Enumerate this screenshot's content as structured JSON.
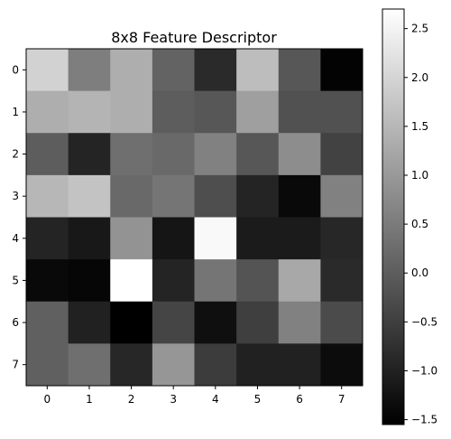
{
  "chart_data": {
    "type": "heatmap",
    "title": "8x8 Feature Descriptor",
    "xlabel": "",
    "ylabel": "",
    "x_ticks": [
      "0",
      "1",
      "2",
      "3",
      "4",
      "5",
      "6",
      "7"
    ],
    "y_ticks": [
      "0",
      "1",
      "2",
      "3",
      "4",
      "5",
      "6",
      "7"
    ],
    "colormap": "gray",
    "vmin": -1.55,
    "vmax": 2.7,
    "colorbar_ticks": [
      "2.5",
      "2.0",
      "1.5",
      "1.0",
      "0.5",
      "0.0",
      "−0.5",
      "−1.0",
      "−1.5"
    ],
    "colorbar_tick_values": [
      2.5,
      2.0,
      1.5,
      1.0,
      0.5,
      0.0,
      -0.5,
      -1.0,
      -1.5
    ],
    "values": [
      [
        1.95,
        0.55,
        1.35,
        0.1,
        -0.85,
        1.6,
        -0.1,
        -1.5
      ],
      [
        1.35,
        1.45,
        1.35,
        0.0,
        -0.1,
        1.1,
        -0.2,
        -0.2
      ],
      [
        0.0,
        -0.95,
        0.3,
        0.2,
        0.6,
        -0.1,
        0.8,
        -0.45
      ],
      [
        1.5,
        1.7,
        0.2,
        0.4,
        -0.25,
        -0.95,
        -1.4,
        0.6
      ],
      [
        -0.95,
        -1.15,
        0.9,
        -1.2,
        2.6,
        -1.1,
        -1.1,
        -0.9
      ],
      [
        -1.4,
        -1.45,
        2.7,
        -0.95,
        0.4,
        -0.15,
        1.25,
        -0.85
      ],
      [
        0.05,
        -1.0,
        -1.55,
        -0.4,
        -1.3,
        -0.5,
        0.6,
        -0.3
      ],
      [
        0.05,
        0.3,
        -0.9,
        0.95,
        -0.55,
        -1.0,
        -1.0,
        -1.35
      ]
    ]
  }
}
